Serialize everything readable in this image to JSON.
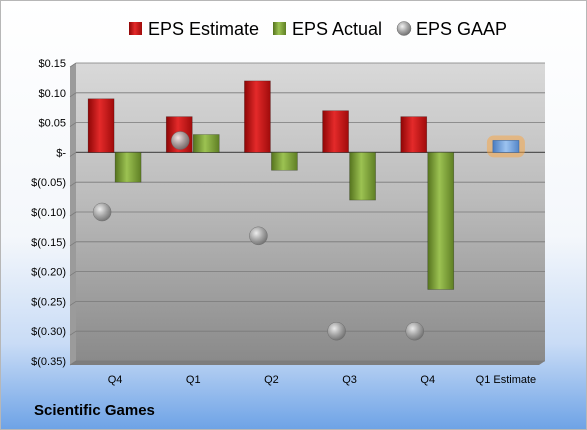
{
  "company": "Scientific Games",
  "chart_data": {
    "type": "bar",
    "categories": [
      "Q4",
      "Q1",
      "Q2",
      "Q3",
      "Q4",
      "Q1 Estimate"
    ],
    "series": [
      {
        "name": "EPS Estimate",
        "color": "#cc1111",
        "values": [
          0.09,
          0.06,
          0.12,
          0.07,
          0.06,
          null
        ]
      },
      {
        "name": "EPS Actual",
        "color": "#7fa23a",
        "values": [
          -0.05,
          0.03,
          -0.03,
          -0.08,
          -0.23,
          null
        ]
      },
      {
        "name": "EPS GAAP",
        "color": "#9a9a9a",
        "values": [
          -0.1,
          0.02,
          -0.14,
          -0.3,
          -0.3,
          null
        ]
      }
    ],
    "estimate_bar": {
      "category": "Q1 Estimate",
      "value": 0.02,
      "color": "#6c9bd8",
      "glow": "#f6a84a"
    },
    "ylim": [
      -0.35,
      0.15
    ],
    "yticks": [
      0.15,
      0.1,
      0.05,
      0,
      -0.05,
      -0.1,
      -0.15,
      -0.2,
      -0.25,
      -0.3,
      -0.35
    ],
    "ytick_labels": [
      "$0.15",
      "$0.10",
      "$0.05",
      "$-",
      "$(0.05)",
      "$(0.10)",
      "$(0.15)",
      "$(0.20)",
      "$(0.25)",
      "$(0.30)",
      "$(0.35)"
    ],
    "legend_position": "top",
    "grid": true
  }
}
